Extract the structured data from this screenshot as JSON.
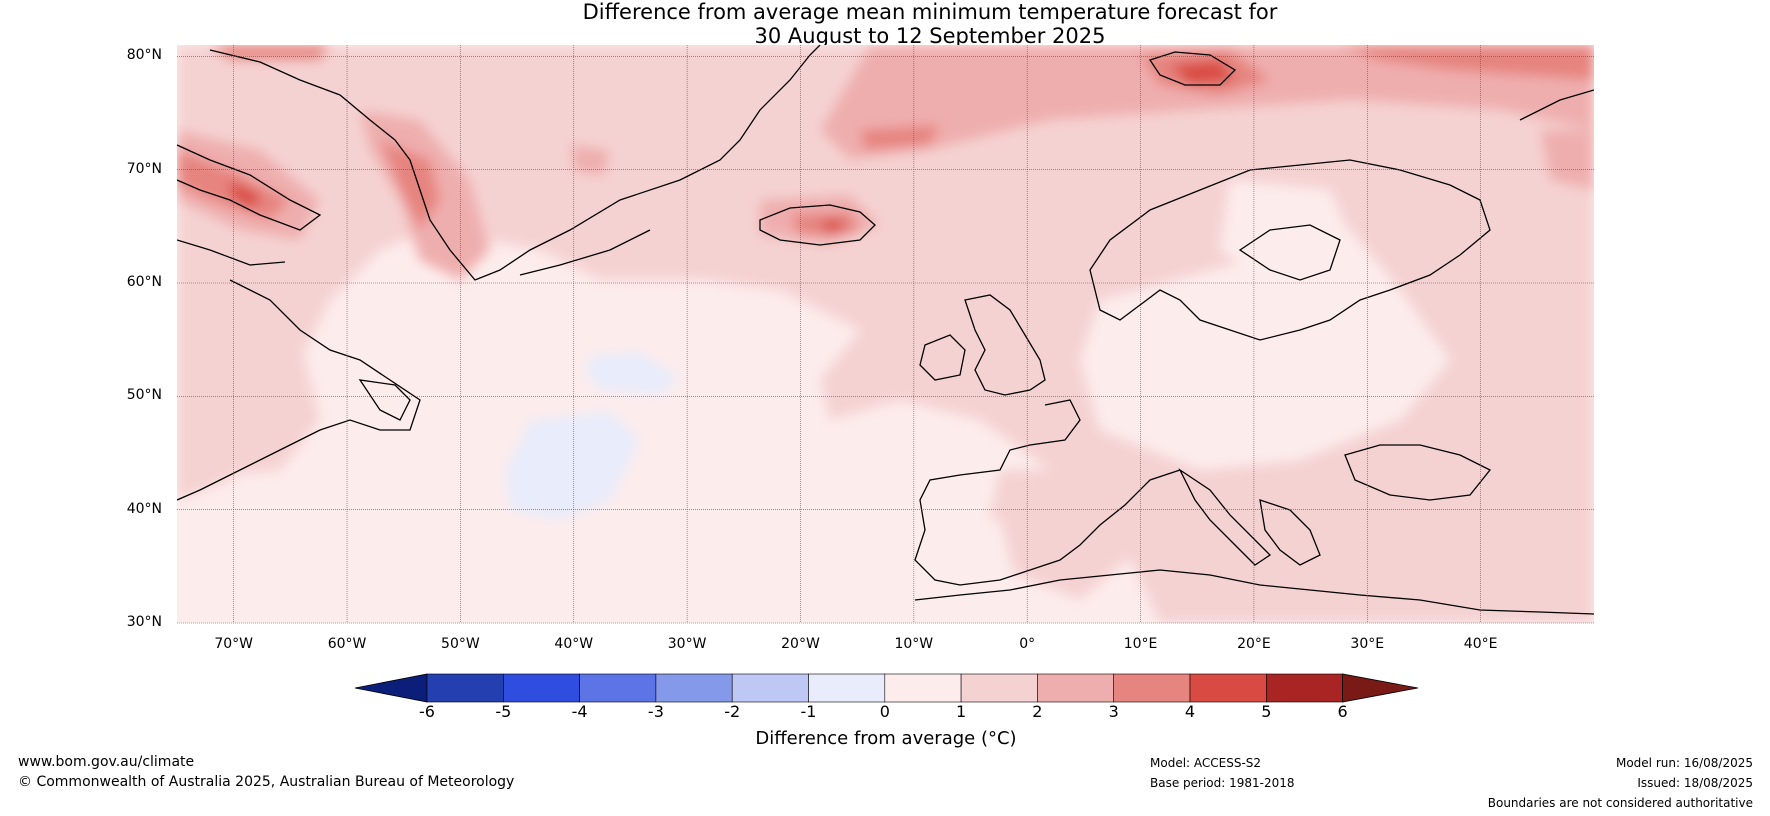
{
  "title": {
    "line1": "Difference from average mean minimum temperature forecast for",
    "line2": "30 August to 12 September 2025"
  },
  "map": {
    "latitudes": [
      "80°N",
      "70°N",
      "60°N",
      "50°N",
      "40°N",
      "30°N"
    ],
    "longitudes": [
      "70°W",
      "60°W",
      "50°W",
      "40°W",
      "30°W",
      "20°W",
      "10°W",
      "0°",
      "10°E",
      "20°E",
      "30°E",
      "40°E"
    ],
    "lat_values": [
      80,
      70,
      60,
      50,
      40,
      30
    ],
    "lon_values": [
      -70,
      -60,
      -50,
      -40,
      -30,
      -20,
      -10,
      0,
      10,
      20,
      30,
      40
    ],
    "extent": {
      "lon_min": -75,
      "lon_max": 50,
      "lat_min": 30,
      "lat_max": 81
    }
  },
  "colorbar": {
    "ticks": [
      "-6",
      "-5",
      "-4",
      "-3",
      "-2",
      "-1",
      "0",
      "1",
      "2",
      "3",
      "4",
      "5",
      "6"
    ],
    "colors": [
      "#0b1f7a",
      "#233fb0",
      "#2f4ee0",
      "#5c74e6",
      "#8599ea",
      "#bfc8f5",
      "#e8ecfb",
      "#fdecec",
      "#f5d2d2",
      "#efaeae",
      "#e6847f",
      "#d94b42",
      "#a92524",
      "#7a1a16"
    ],
    "label": "Difference from average (°C)"
  },
  "footer": {
    "website": "www.bom.gov.au/climate",
    "copyright": "© Commonwealth of Australia 2025, Australian Bureau of Meteorology",
    "model": "Model: ACCESS-S2",
    "base_period": "Base period: 1981-2018",
    "model_run": "Model run: 16/08/2025",
    "issued": "Issued: 18/08/2025",
    "disclaimer": "Boundaries are not considered authoritative"
  }
}
